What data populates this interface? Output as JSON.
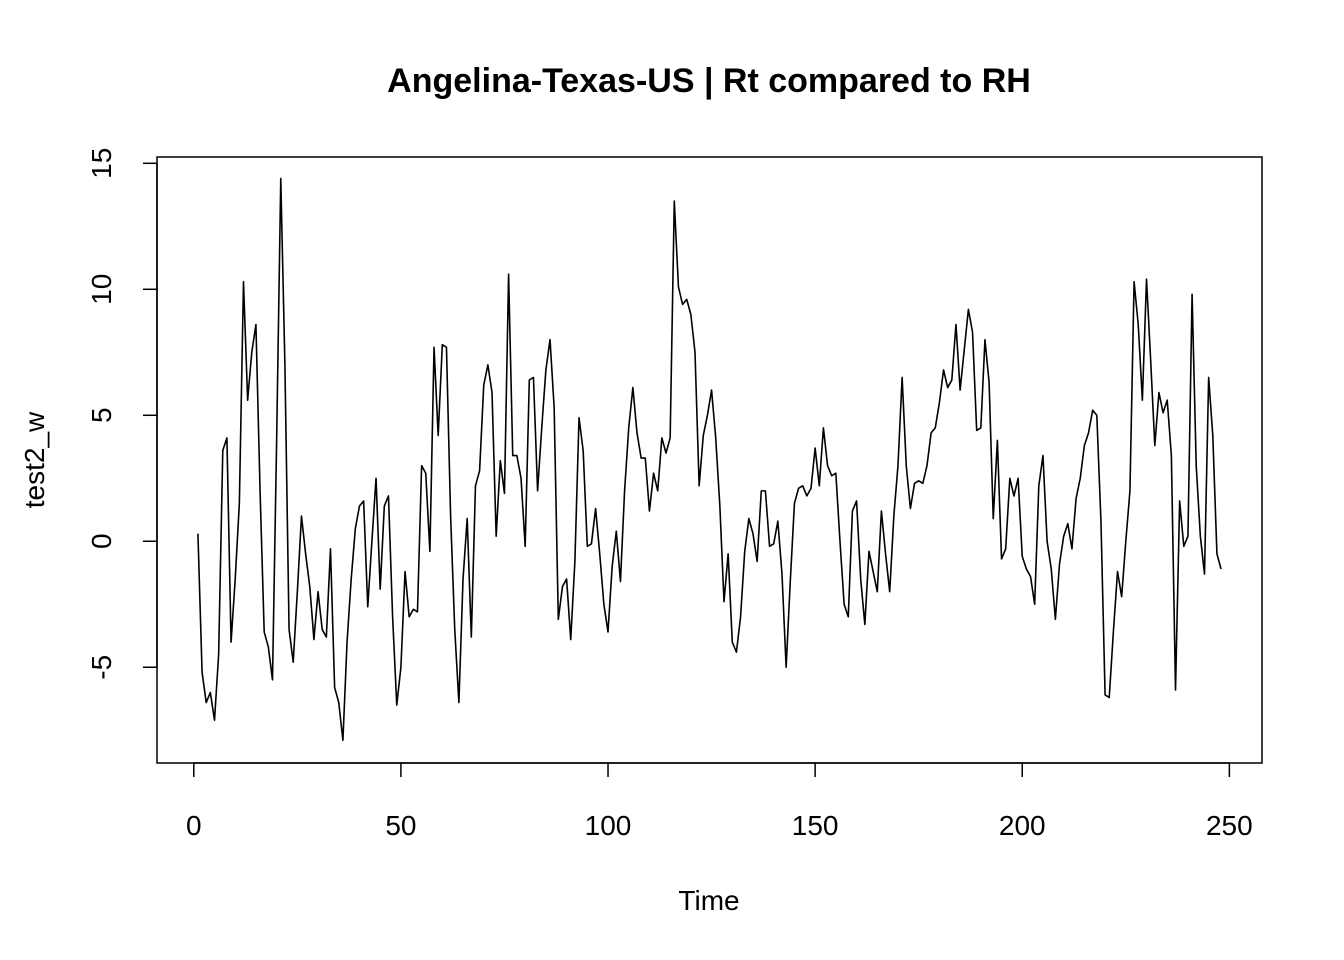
{
  "chart_data": {
    "type": "line",
    "title": "Angelina-Texas-US | Rt compared to RH",
    "x_label": "Time",
    "y_label": "test2_w",
    "color": "#000000",
    "x": [
      1,
      2,
      3,
      4,
      5,
      6,
      7,
      8,
      9,
      10,
      11,
      12,
      13,
      14,
      15,
      16,
      17,
      18,
      19,
      20,
      21,
      22,
      23,
      24,
      25,
      26,
      27,
      28,
      29,
      30,
      31,
      32,
      33,
      34,
      35,
      36,
      37,
      38,
      39,
      40,
      41,
      42,
      43,
      44,
      45,
      46,
      47,
      48,
      49,
      50,
      51,
      52,
      53,
      54,
      55,
      56,
      57,
      58,
      59,
      60,
      61,
      62,
      63,
      64,
      65,
      66,
      67,
      68,
      69,
      70,
      71,
      72,
      73,
      74,
      75,
      76,
      77,
      78,
      79,
      80,
      81,
      82,
      83,
      84,
      85,
      86,
      87,
      88,
      89,
      90,
      91,
      92,
      93,
      94,
      95,
      96,
      97,
      98,
      99,
      100,
      101,
      102,
      103,
      104,
      105,
      106,
      107,
      108,
      109,
      110,
      111,
      112,
      113,
      114,
      115,
      116,
      117,
      118,
      119,
      120,
      121,
      122,
      123,
      124,
      125,
      126,
      127,
      128,
      129,
      130,
      131,
      132,
      133,
      134,
      135,
      136,
      137,
      138,
      139,
      140,
      141,
      142,
      143,
      144,
      145,
      146,
      147,
      148,
      149,
      150,
      151,
      152,
      153,
      154,
      155,
      156,
      157,
      158,
      159,
      160,
      161,
      162,
      163,
      164,
      165,
      166,
      167,
      168,
      169,
      170,
      171,
      172,
      173,
      174,
      175,
      176,
      177,
      178,
      179,
      180,
      181,
      182,
      183,
      184,
      185,
      186,
      187,
      188,
      189,
      190,
      191,
      192,
      193,
      194,
      195,
      196,
      197,
      198,
      199,
      200,
      201,
      202,
      203,
      204,
      205,
      206,
      207,
      208,
      209,
      210,
      211,
      212,
      213,
      214,
      215,
      216,
      217,
      218,
      219,
      220,
      221,
      222,
      223,
      224,
      225,
      226,
      227,
      228,
      229,
      230,
      231,
      232,
      233,
      234,
      235,
      236,
      237,
      238,
      239,
      240,
      241,
      242,
      243,
      244,
      245,
      246,
      247,
      248
    ],
    "values": [
      0.3,
      -5.2,
      -6.4,
      -6.0,
      -7.1,
      -4.5,
      3.6,
      4.1,
      -4.0,
      -1.5,
      1.5,
      10.3,
      5.6,
      7.5,
      8.6,
      2.0,
      -3.6,
      -4.2,
      -5.5,
      4.0,
      14.4,
      7.0,
      -3.5,
      -4.8,
      -2.0,
      1.0,
      -0.5,
      -1.8,
      -3.9,
      -2.0,
      -3.5,
      -3.8,
      -0.3,
      -5.8,
      -6.4,
      -7.9,
      -4.0,
      -1.5,
      0.5,
      1.4,
      1.6,
      -2.6,
      0.0,
      2.5,
      -1.9,
      1.4,
      1.8,
      -3.0,
      -6.5,
      -5.0,
      -1.2,
      -3.0,
      -2.7,
      -2.8,
      3.0,
      2.7,
      -0.4,
      7.7,
      4.2,
      7.8,
      7.7,
      1.0,
      -3.5,
      -6.4,
      -1.5,
      0.9,
      -3.8,
      2.2,
      2.8,
      6.2,
      7.0,
      5.9,
      0.2,
      3.2,
      1.9,
      10.6,
      3.4,
      3.4,
      2.5,
      -0.2,
      6.4,
      6.5,
      2.0,
      4.5,
      6.8,
      8.0,
      5.3,
      -3.1,
      -1.8,
      -1.5,
      -3.9,
      -0.8,
      4.9,
      3.6,
      -0.2,
      -0.1,
      1.3,
      -0.5,
      -2.5,
      -3.6,
      -1.0,
      0.4,
      -1.6,
      2.0,
      4.5,
      6.1,
      4.3,
      3.3,
      3.3,
      1.2,
      2.7,
      2.0,
      4.1,
      3.5,
      4.1,
      13.5,
      10.1,
      9.4,
      9.6,
      9.0,
      7.5,
      2.2,
      4.2,
      5.0,
      6.0,
      4.1,
      1.4,
      -2.4,
      -0.5,
      -4.0,
      -4.4,
      -3.0,
      -0.4,
      0.9,
      0.3,
      -0.8,
      2.0,
      2.0,
      -0.2,
      -0.1,
      0.8,
      -1.3,
      -5.0,
      -1.6,
      1.5,
      2.1,
      2.2,
      1.8,
      2.1,
      3.7,
      2.2,
      4.5,
      3.0,
      2.6,
      2.7,
      0.0,
      -2.5,
      -3.0,
      1.2,
      1.6,
      -1.5,
      -3.3,
      -0.4,
      -1.2,
      -2.0,
      1.2,
      -0.5,
      -2.0,
      1.0,
      3.0,
      6.5,
      3.0,
      1.3,
      2.3,
      2.4,
      2.3,
      3.0,
      4.3,
      4.5,
      5.5,
      6.8,
      6.1,
      6.4,
      8.6,
      6.0,
      7.6,
      9.2,
      8.3,
      4.4,
      4.5,
      8.0,
      6.3,
      0.9,
      4.0,
      -0.7,
      -0.3,
      2.5,
      1.8,
      2.5,
      -0.6,
      -1.1,
      -1.4,
      -2.5,
      2.2,
      3.4,
      0.0,
      -1.1,
      -3.1,
      -0.9,
      0.2,
      0.7,
      -0.3,
      1.7,
      2.5,
      3.8,
      4.3,
      5.2,
      5.0,
      0.8,
      -6.1,
      -6.2,
      -3.6,
      -1.2,
      -2.2,
      0.0,
      2.0,
      10.3,
      8.6,
      5.6,
      10.4,
      7.2,
      3.8,
      5.9,
      5.1,
      5.6,
      3.4,
      -5.9,
      1.6,
      -0.2,
      0.2,
      9.8,
      3.0,
      0.2,
      -1.3,
      6.5,
      4.2,
      -0.5,
      -1.1
    ],
    "xlim": [
      -8.88,
      257.88
    ],
    "ylim": [
      -8.8,
      15.25
    ],
    "xticks": [
      0,
      50,
      100,
      150,
      200,
      250
    ],
    "yticks": [
      -5,
      0,
      5,
      10,
      15
    ]
  }
}
